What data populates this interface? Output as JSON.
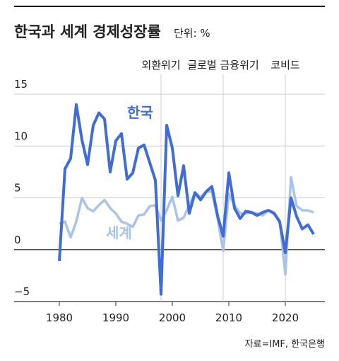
{
  "chart_data": {
    "type": "line",
    "title": "한국과 세계 경제성장률",
    "subtitle": "단위: %",
    "source": "자료=IMF, 한국은행",
    "x": [
      1980,
      1981,
      1982,
      1983,
      1984,
      1985,
      1986,
      1987,
      1988,
      1989,
      1990,
      1991,
      1992,
      1993,
      1994,
      1995,
      1996,
      1997,
      1998,
      1999,
      2000,
      2001,
      2002,
      2003,
      2004,
      2005,
      2006,
      2007,
      2008,
      2009,
      2010,
      2011,
      2012,
      2013,
      2014,
      2015,
      2016,
      2017,
      2018,
      2019,
      2020,
      2021,
      2022,
      2023,
      2024,
      2025
    ],
    "series": [
      {
        "name": "세계",
        "color": "#aac3eb",
        "values": [
          2.5,
          2.7,
          1.2,
          2.7,
          5.0,
          4.0,
          3.7,
          4.3,
          4.8,
          4.0,
          3.5,
          2.7,
          2.5,
          2.2,
          3.3,
          3.4,
          4.2,
          4.3,
          2.8,
          3.8,
          5.1,
          2.8,
          3.1,
          4.3,
          5.5,
          5.1,
          5.6,
          5.6,
          3.0,
          -0.1,
          5.4,
          4.3,
          3.5,
          3.5,
          3.6,
          3.5,
          3.3,
          3.8,
          3.6,
          2.8,
          -2.4,
          7.0,
          4.2,
          3.8,
          3.8,
          3.6
        ]
      },
      {
        "name": "한국",
        "color": "#3f6cd6",
        "values": [
          -1.1,
          7.8,
          8.8,
          14.0,
          10.6,
          8.2,
          12.0,
          13.2,
          12.6,
          7.5,
          10.5,
          11.2,
          6.8,
          7.4,
          9.8,
          10.1,
          8.4,
          6.7,
          -4.3,
          12.0,
          9.8,
          5.2,
          8.1,
          3.5,
          5.5,
          4.8,
          5.6,
          6.1,
          3.3,
          1.3,
          7.4,
          4.0,
          3.0,
          3.7,
          3.6,
          3.3,
          3.6,
          3.8,
          3.5,
          2.7,
          -0.3,
          5.0,
          3.2,
          2.0,
          2.4,
          1.5
        ]
      }
    ],
    "annotations": [
      {
        "text": "외환위기",
        "x": 1998
      },
      {
        "text": "글로벌 금융위기",
        "x": 2009
      },
      {
        "text": "코비드",
        "x": 2020
      }
    ],
    "xlim": [
      1972,
      2027
    ],
    "xticks": [
      1980,
      1990,
      2000,
      2010,
      2020
    ],
    "ylim": [
      -5,
      15
    ],
    "yticks": [
      {
        "value": -5,
        "label": "−5"
      },
      0,
      5,
      10,
      15
    ],
    "grid": true
  }
}
